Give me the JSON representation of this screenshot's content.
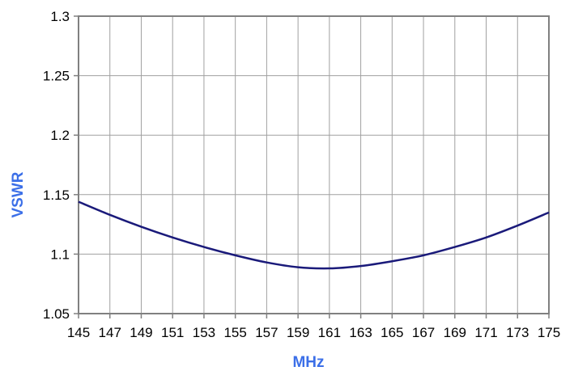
{
  "chart_data": {
    "type": "line",
    "title": "",
    "xlabel": "MHz",
    "ylabel": "VSWR",
    "xlim": [
      145,
      175
    ],
    "ylim": [
      1.05,
      1.3
    ],
    "x_ticks": [
      "145",
      "147",
      "149",
      "151",
      "153",
      "155",
      "157",
      "159",
      "161",
      "163",
      "165",
      "167",
      "169",
      "171",
      "173",
      "175"
    ],
    "y_ticks": [
      "1.05",
      "1.1",
      "1.15",
      "1.2",
      "1.25",
      "1.3"
    ],
    "grid": true,
    "legend": "none",
    "series": [
      {
        "color": "#1a1a7a",
        "x": [
          145,
          147,
          149,
          151,
          153,
          155,
          157,
          159,
          161,
          163,
          165,
          167,
          169,
          171,
          173,
          175
        ],
        "y": [
          1.144,
          1.133,
          1.123,
          1.114,
          1.106,
          1.099,
          1.093,
          1.089,
          1.088,
          1.09,
          1.094,
          1.099,
          1.106,
          1.114,
          1.124,
          1.135
        ]
      }
    ],
    "colors": {
      "axis_title": "#3b6fe8",
      "grid": "#a0a0a0",
      "frame": "#808080"
    }
  }
}
